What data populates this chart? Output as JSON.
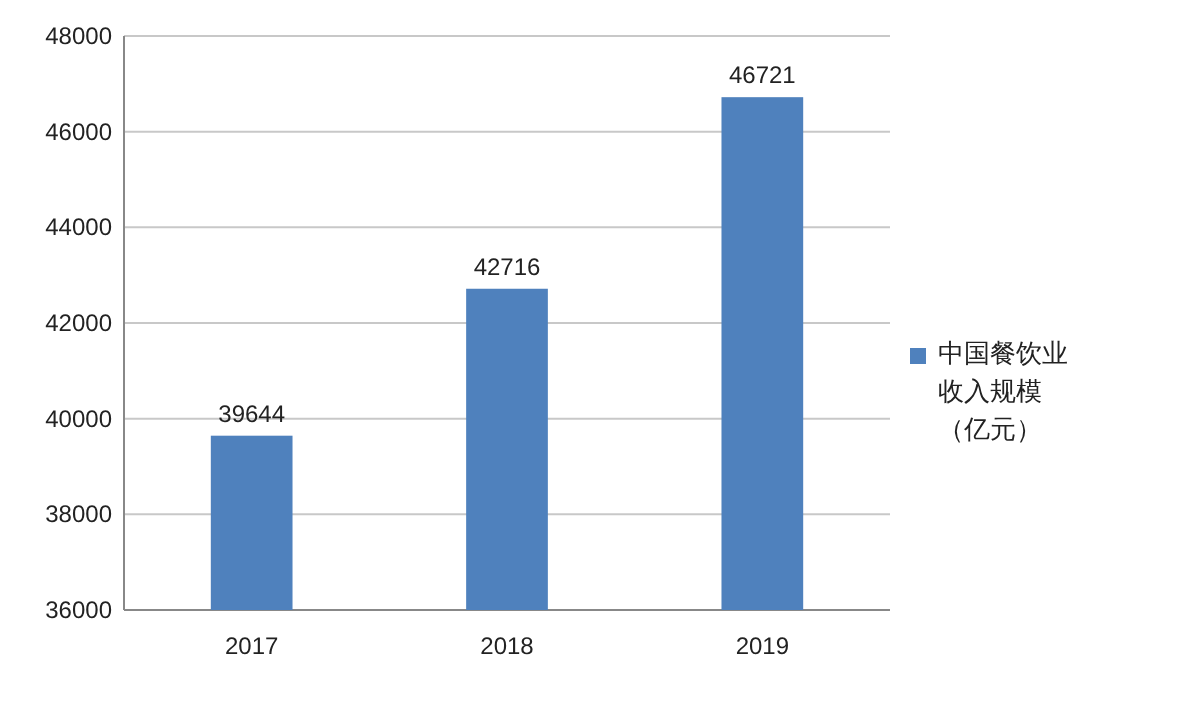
{
  "chart_data": {
    "type": "bar",
    "categories": [
      "2017",
      "2018",
      "2019"
    ],
    "series": [
      {
        "name": "中国餐饮业收入规模（亿元）",
        "color": "#4f81bd",
        "values": [
          39644,
          42716,
          46721
        ]
      }
    ],
    "ylim": [
      36000,
      48000
    ],
    "yticks": [
      36000,
      38000,
      40000,
      42000,
      44000,
      46000,
      48000
    ],
    "grid": "y",
    "legend": "right",
    "data_labels": true
  }
}
